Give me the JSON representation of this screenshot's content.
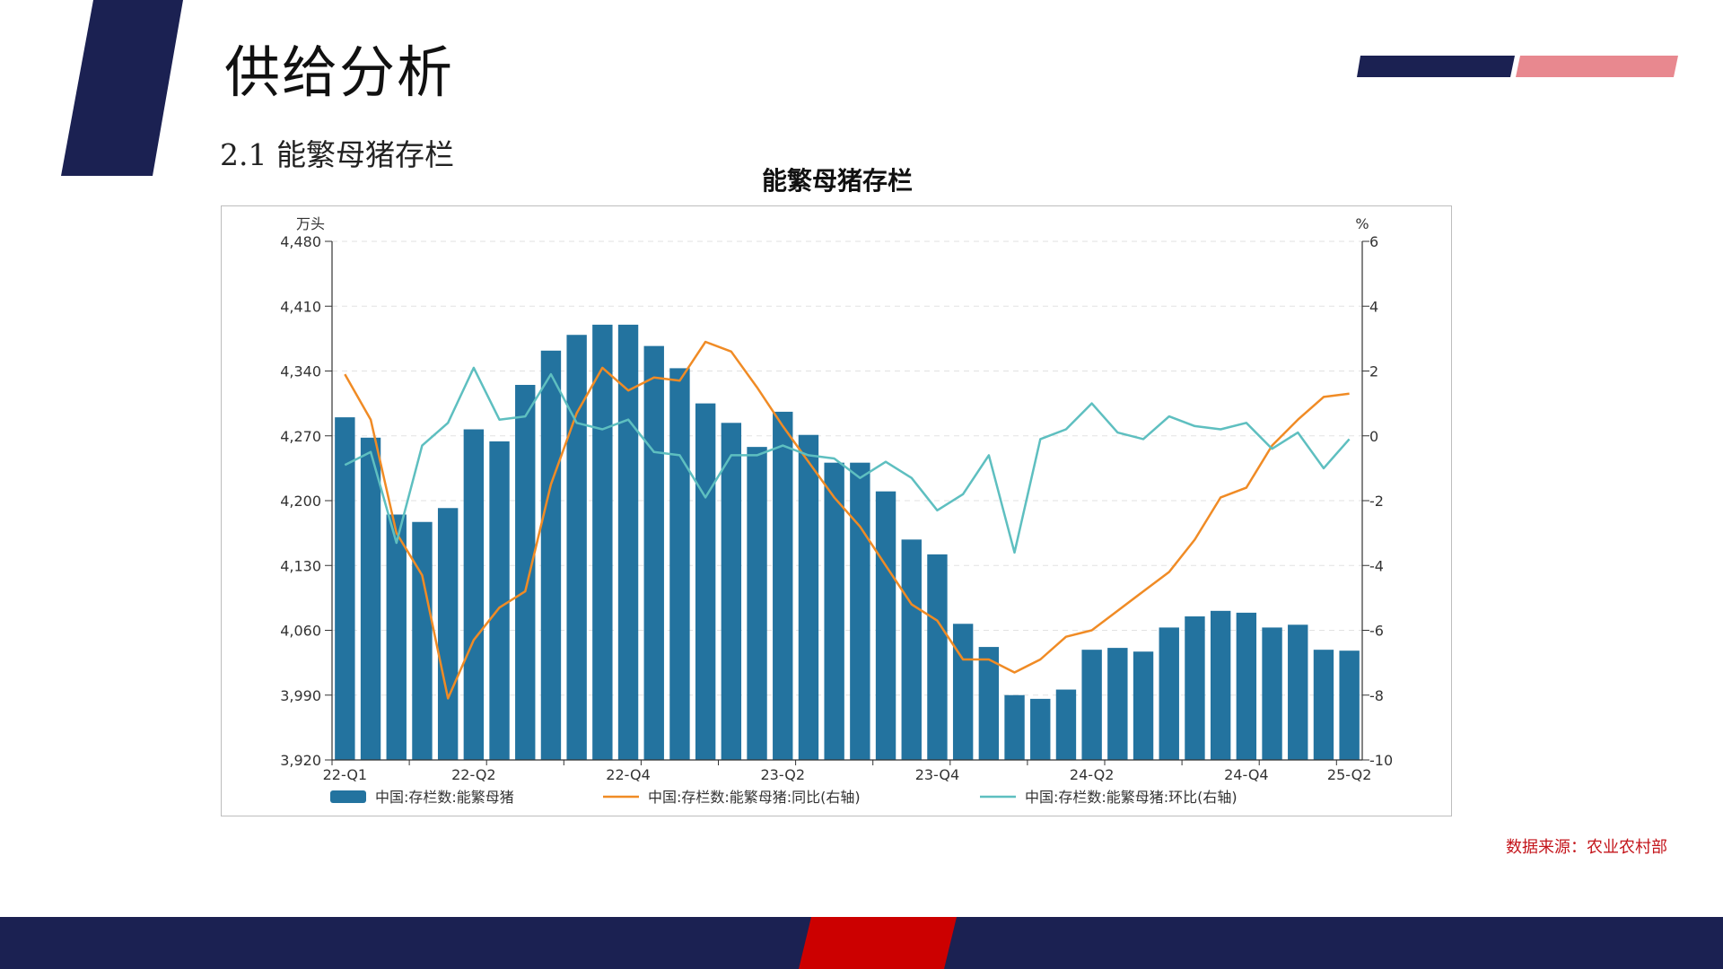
{
  "slide": {
    "title": "供给分析",
    "section": "2.1 能繁母猪存栏",
    "source": "数据来源：农业农村部"
  },
  "colors": {
    "navy": "#1b2152",
    "pink": "#e8888f",
    "red": "#cc0000",
    "bar": "#23739f",
    "yoy_line": "#f08b25",
    "mom_line": "#5ebfc0",
    "source_text": "#c4161c"
  },
  "chart_data": {
    "type": "bar",
    "title": "能繁母猪存栏",
    "ylabel_left": "万头",
    "ylabel_right": "%",
    "ylim_left": [
      3920,
      4480
    ],
    "yticks_left": [
      "4,480",
      "4,410",
      "4,340",
      "4,270",
      "4,200",
      "4,130",
      "4,060",
      "3,990",
      "3,920"
    ],
    "ylim_right": [
      -10,
      6
    ],
    "yticks_right": [
      "6",
      "4",
      "2",
      "0",
      "-2",
      "-4",
      "-6",
      "-8",
      "-10"
    ],
    "x_tick_labels": [
      "22-Q1",
      "22-Q2",
      "22-Q4",
      "23-Q2",
      "23-Q4",
      "24-Q2",
      "24-Q4",
      "25-Q2"
    ],
    "x_tick_label_index": [
      0,
      5,
      11,
      17,
      23,
      29,
      35,
      39
    ],
    "legend_position": "bottom",
    "grid": true,
    "series": [
      {
        "name": "中国:存栏数:能繁母猪",
        "kind": "bar",
        "axis": "left",
        "values": [
          4290,
          4268,
          4185,
          4177,
          4192,
          4277,
          4264,
          4325,
          4362,
          4379,
          4390,
          4390,
          4367,
          4343,
          4305,
          4284,
          4258,
          4296,
          4271,
          4241,
          4241,
          4210,
          4158,
          4142,
          4067,
          4042,
          3990,
          3986,
          3996,
          4039,
          4041,
          4037,
          4063,
          4075,
          4081,
          4079,
          4063,
          4066,
          4039,
          4038
        ]
      },
      {
        "name": "中国:存栏数:能繁母猪:同比(右轴)",
        "kind": "line",
        "axis": "right",
        "values": [
          1.9,
          0.5,
          -3.0,
          -4.3,
          -8.1,
          -6.3,
          -5.3,
          -4.8,
          -1.5,
          0.7,
          2.1,
          1.4,
          1.8,
          1.7,
          2.9,
          2.6,
          1.5,
          0.3,
          -0.8,
          -1.9,
          -2.8,
          -4.0,
          -5.2,
          -5.7,
          -6.9,
          -6.9,
          -7.3,
          -6.9,
          -6.2,
          -6.0,
          -5.4,
          -4.8,
          -4.2,
          -3.2,
          -1.9,
          -1.6,
          -0.3,
          0.5,
          1.2,
          1.3
        ]
      },
      {
        "name": "中国:存栏数:能繁母猪:环比(右轴)",
        "kind": "line",
        "axis": "right",
        "values": [
          -0.9,
          -0.5,
          -3.3,
          -0.3,
          0.4,
          2.1,
          0.5,
          0.6,
          1.9,
          0.4,
          0.2,
          0.5,
          -0.5,
          -0.6,
          -1.9,
          -0.6,
          -0.6,
          -0.3,
          -0.6,
          -0.7,
          -1.3,
          -0.8,
          -1.3,
          -2.3,
          -1.8,
          -0.6,
          -3.6,
          -0.1,
          0.2,
          1.0,
          0.1,
          -0.1,
          0.6,
          0.3,
          0.2,
          0.4,
          -0.4,
          0.1,
          -1.0,
          -0.1
        ]
      }
    ]
  }
}
